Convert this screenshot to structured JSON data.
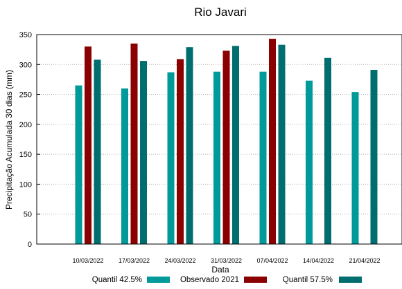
{
  "chart_data": {
    "type": "bar",
    "title": "Rio Javari",
    "xlabel": "Data",
    "ylabel": "Precipitação Acumulada 30 dias (mm)",
    "ylim": [
      0,
      350
    ],
    "yticks": [
      0,
      50,
      100,
      150,
      200,
      250,
      300,
      350
    ],
    "grid": true,
    "legend_position": "bottom",
    "categories": [
      "10/03/2022",
      "17/03/2022",
      "24/03/2022",
      "31/03/2022",
      "07/04/2022",
      "14/04/2022",
      "21/04/2022"
    ],
    "series": [
      {
        "name": "Quantil 42.5%",
        "color": "#009a9a",
        "values": [
          265,
          260,
          287,
          288,
          288,
          273,
          254
        ]
      },
      {
        "name": "Observado 2021",
        "color": "#8b0000",
        "values": [
          330,
          335,
          309,
          323,
          343,
          null,
          null
        ]
      },
      {
        "name": "Quantil 57.5%",
        "color": "#006e6e",
        "values": [
          308,
          306,
          329,
          331,
          333,
          311,
          291
        ]
      }
    ]
  }
}
